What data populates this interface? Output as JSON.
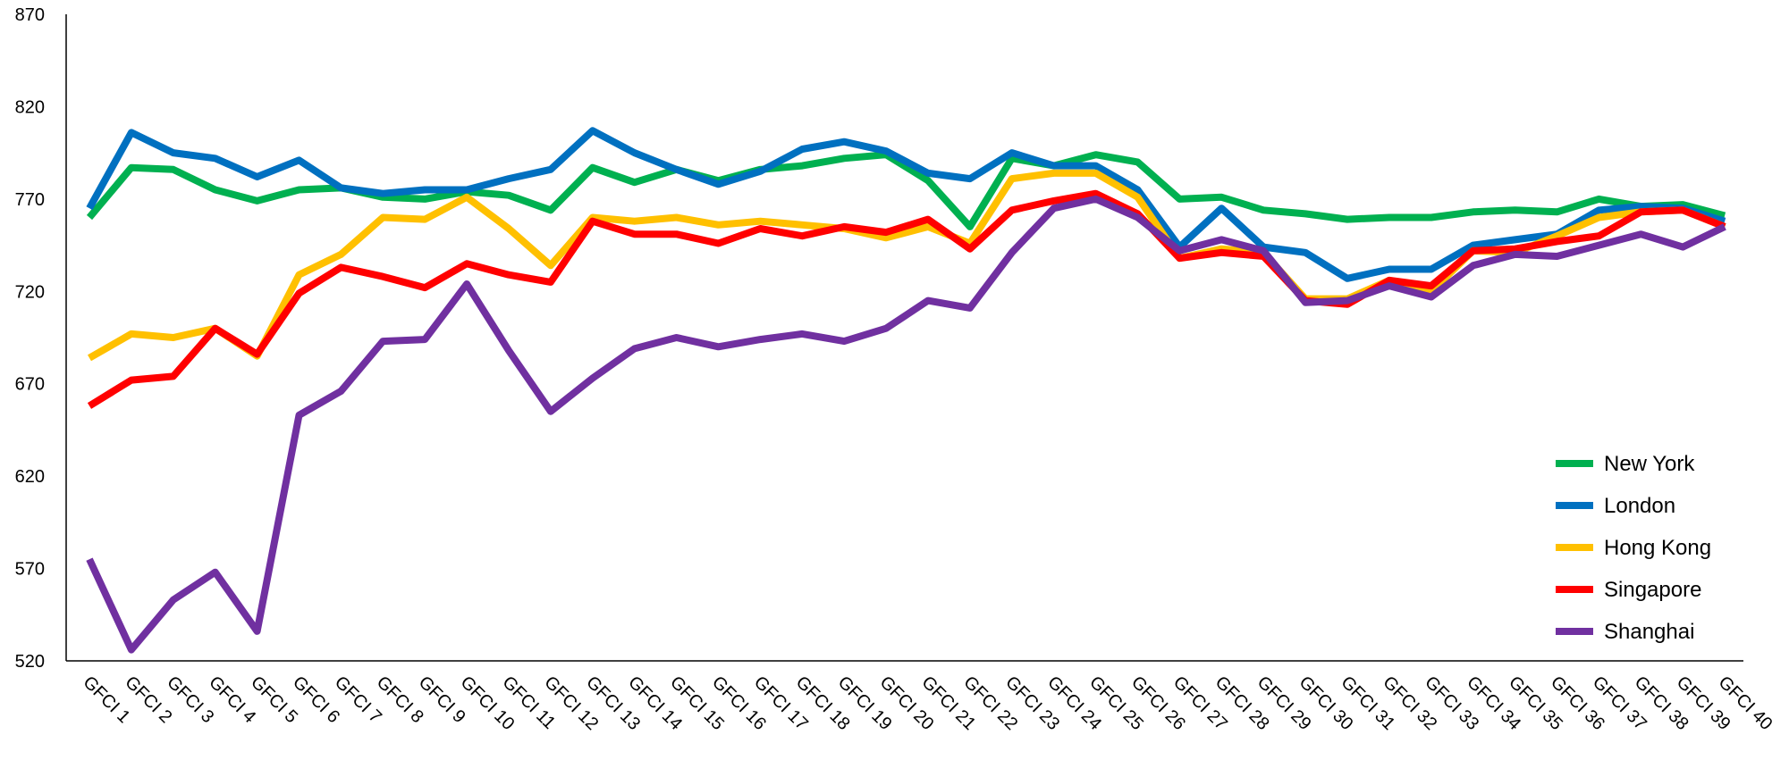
{
  "chart_data": {
    "type": "line",
    "title": "",
    "xlabel": "",
    "ylabel": "",
    "ylim": [
      520,
      870
    ],
    "yticks": [
      520,
      570,
      620,
      670,
      720,
      770,
      820,
      870
    ],
    "grid": false,
    "legend_position": "bottom-right",
    "categories": [
      "GFCI 1",
      "GFCI 2",
      "GFCI 3",
      "GFCI 4",
      "GFCI 5",
      "GFCI 6",
      "GFCI 7",
      "GFCI 8",
      "GFCI 9",
      "GFCI 10",
      "GFCI 11",
      "GFCI 12",
      "GFCI 13",
      "GFCI 14",
      "GFCI 15",
      "GFCI 16",
      "GFCI 17",
      "GFCI 18",
      "GFCI 19",
      "GFCI 20",
      "GFCI 21",
      "GFCI 22",
      "GFCI 23",
      "GFCI 24",
      "GFCI 25",
      "GFCI 26",
      "GFCI 27",
      "GFCI 28",
      "GFCI 29",
      "GFCI 30",
      "GFCI 31",
      "GFCI 32",
      "GFCI 33",
      "GFCI 34",
      "GFCI 35",
      "GFCI 36",
      "GFCI 37",
      "GFCI 38",
      "GFCI 39",
      "GFCI 40"
    ],
    "series": [
      {
        "name": "New York",
        "color": "#00B050",
        "values": [
          760,
          787,
          786,
          775,
          769,
          775,
          776,
          771,
          770,
          774,
          772,
          764,
          787,
          779,
          786,
          780,
          786,
          788,
          792,
          794,
          780,
          755,
          792,
          788,
          794,
          790,
          770,
          771,
          764,
          762,
          759,
          760,
          760,
          763,
          764,
          763,
          770,
          766,
          767,
          761
        ]
      },
      {
        "name": "London",
        "color": "#0070C0",
        "values": [
          765,
          806,
          795,
          792,
          782,
          791,
          776,
          773,
          775,
          775,
          781,
          786,
          807,
          795,
          786,
          778,
          785,
          797,
          801,
          796,
          784,
          781,
          795,
          788,
          788,
          775,
          744,
          765,
          744,
          741,
          727,
          732,
          732,
          745,
          748,
          751,
          764,
          766,
          765,
          758
        ]
      },
      {
        "name": "Hong Kong",
        "color": "#FFC000",
        "values": [
          684,
          697,
          695,
          700,
          685,
          729,
          740,
          760,
          759,
          771,
          754,
          734,
          760,
          758,
          760,
          756,
          758,
          756,
          754,
          749,
          755,
          746,
          781,
          784,
          784,
          771,
          738,
          743,
          741,
          716,
          716,
          726,
          720,
          742,
          741,
          750,
          760,
          763,
          764,
          755
        ]
      },
      {
        "name": "Singapore",
        "color": "#FF0000",
        "values": [
          658,
          672,
          674,
          700,
          686,
          719,
          733,
          728,
          722,
          735,
          729,
          725,
          758,
          751,
          751,
          746,
          754,
          750,
          755,
          752,
          759,
          743,
          764,
          769,
          773,
          762,
          738,
          741,
          739,
          715,
          713,
          726,
          723,
          742,
          743,
          747,
          750,
          763,
          764,
          755
        ]
      },
      {
        "name": "Shanghai",
        "color": "#7030A0",
        "values": [
          575,
          526,
          553,
          568,
          536,
          653,
          666,
          693,
          694,
          724,
          688,
          655,
          673,
          689,
          695,
          690,
          694,
          697,
          693,
          700,
          715,
          711,
          741,
          765,
          770,
          760,
          742,
          748,
          742,
          714,
          715,
          723,
          717,
          734,
          740,
          739,
          745,
          751,
          744,
          755
        ]
      }
    ]
  }
}
